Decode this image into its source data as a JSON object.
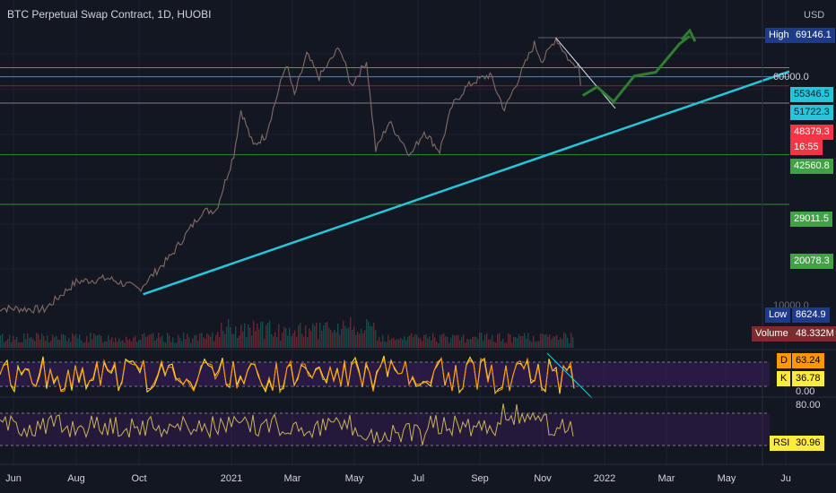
{
  "title": "BTC Perpetual Swap Contract, 1D, HUOBI",
  "currency": "USD",
  "colors": {
    "background": "#131722",
    "trendline": "#26c6da",
    "candle_up": "#26a69a",
    "candle_down": "#ef5350",
    "forecast": "#2e7d32",
    "stoch_d": "#ff9800",
    "stoch_k": "#ffeb3b",
    "rsi": "#c9b458",
    "panel_band": "#3b1d5c"
  },
  "price_labels": {
    "high": {
      "name": "High",
      "value": "69146.1"
    },
    "low": {
      "name": "Low",
      "value": "8624.9"
    },
    "volume": {
      "name": "Volume",
      "value": "48.332M"
    },
    "level_55346": "55346.5",
    "level_51722": "51722.3",
    "current": "48379.3",
    "countdown": "16:55",
    "level_42560": "42560.8",
    "level_29011": "29011.5",
    "level_20078": "20078.3",
    "axis_60000": "60000.0",
    "axis_10000": "10000.0"
  },
  "stoch": {
    "d_label": "D",
    "d_value": "63.24",
    "k_label": "K",
    "k_value": "36.78",
    "axis_bottom": "0.00"
  },
  "rsi": {
    "label": "RSI",
    "value": "30.96",
    "axis_top": "80.00"
  },
  "x_axis": [
    "Jun",
    "Aug",
    "Oct",
    "2021",
    "Mar",
    "May",
    "Jul",
    "Sep",
    "Nov",
    "2022",
    "Mar",
    "May",
    "Ju"
  ],
  "chart_data": {
    "type": "line",
    "title": "BTC Perpetual Swap Contract, 1D, HUOBI",
    "x_unit": "date",
    "series": [
      {
        "values": [
          [
            "2020-05-15",
            9300
          ],
          [
            "2020-07-01",
            9200
          ],
          [
            "2020-08-01",
            11300
          ],
          [
            "2020-09-01",
            11600
          ],
          [
            "2020-10-01",
            10700
          ],
          [
            "2020-11-01",
            13700
          ],
          [
            "2020-12-01",
            19000
          ],
          [
            "2020-12-15",
            19300
          ],
          [
            "2021-01-01",
            29000
          ],
          [
            "2021-01-08",
            40500
          ],
          [
            "2021-01-20",
            31000
          ],
          [
            "2021-02-01",
            33500
          ],
          [
            "2021-02-21",
            57000
          ],
          [
            "2021-03-01",
            45000
          ],
          [
            "2021-03-13",
            61000
          ],
          [
            "2021-03-25",
            51500
          ],
          [
            "2021-04-14",
            64500
          ],
          [
            "2021-04-25",
            48500
          ],
          [
            "2021-05-10",
            58000
          ],
          [
            "2021-05-19",
            30000
          ],
          [
            "2021-06-01",
            37000
          ],
          [
            "2021-06-22",
            29000
          ],
          [
            "2021-07-05",
            34500
          ],
          [
            "2021-07-20",
            29800
          ],
          [
            "2021-08-01",
            41500
          ],
          [
            "2021-08-14",
            47500
          ],
          [
            "2021-08-23",
            50000
          ],
          [
            "2021-09-07",
            52500
          ],
          [
            "2021-09-21",
            40500
          ],
          [
            "2021-10-01",
            48000
          ],
          [
            "2021-10-20",
            66000
          ],
          [
            "2021-10-28",
            58000
          ],
          [
            "2021-11-10",
            69000
          ],
          [
            "2021-11-25",
            57000
          ],
          [
            "2021-12-02",
            57300
          ],
          [
            "2021-12-04",
            48400
          ]
        ]
      }
    ],
    "annotations": {
      "horizontal_levels": [
        55346.5,
        51722.3,
        48379.3,
        42560.8,
        29011.5,
        20078.3
      ],
      "ascending_trendline": [
        [
          "2020-10-05",
          10300
        ],
        [
          "2022-06-01",
          51722.3
        ]
      ],
      "descending_line": [
        [
          "2021-11-10",
          69000
        ],
        [
          "2022-01-05",
          42560.8
        ]
      ],
      "forecast_path": [
        [
          "2021-12-06",
          45000
        ],
        [
          "2021-12-20",
          48000
        ],
        [
          "2022-01-05",
          43000
        ],
        [
          "2022-01-25",
          52000
        ],
        [
          "2022-02-15",
          53500
        ],
        [
          "2022-03-10",
          66000
        ],
        [
          "2022-03-20",
          70000
        ]
      ]
    },
    "stoch_rsi": {
      "d": 63.24,
      "k": 36.78,
      "levels": [
        80,
        20
      ]
    },
    "rsi": {
      "value": 30.96,
      "levels": [
        70,
        30
      ]
    },
    "y_scale": "log"
  }
}
